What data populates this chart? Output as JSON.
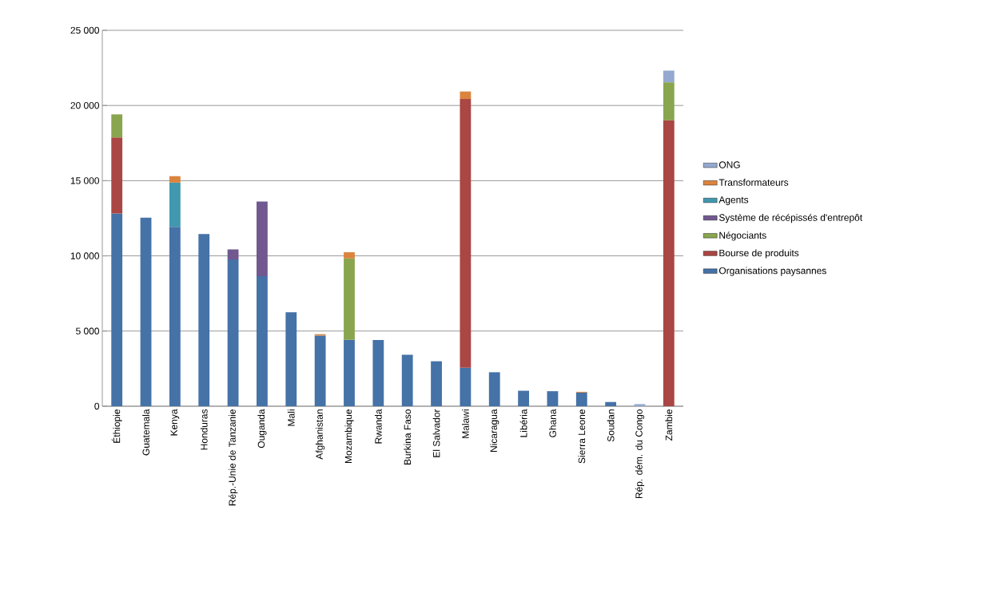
{
  "chart_data": {
    "type": "bar",
    "stacked": true,
    "categories": [
      "Éthiopie",
      "Guatemala",
      "Kenya",
      "Honduras",
      "Rép.-Unie de Tanzanie",
      "Ouganda",
      "Mali",
      "Afghanistan",
      "Mozambique",
      "Rwanda",
      "Burkina Faso",
      "El Salvador",
      "Malawi",
      "Nicaragua",
      "Libéria",
      "Ghana",
      "Sierra Leone",
      "Soudan",
      "Rép. dém. du Congo",
      "Zambie"
    ],
    "series": [
      {
        "name": "Organisations paysannes",
        "color": "#4572a7",
        "values": [
          12820,
          12540,
          11930,
          11450,
          9760,
          8650,
          6250,
          4700,
          4420,
          4400,
          3420,
          2990,
          2560,
          2260,
          1030,
          1000,
          910,
          280,
          null,
          null
        ]
      },
      {
        "name": "Bourse de produits",
        "color": "#aa4643",
        "values": [
          5060,
          null,
          null,
          null,
          null,
          null,
          null,
          null,
          null,
          null,
          null,
          null,
          17870,
          null,
          null,
          null,
          null,
          null,
          null,
          19010
        ]
      },
      {
        "name": "Négociants",
        "color": "#89a54e",
        "values": [
          1530,
          null,
          null,
          null,
          null,
          null,
          null,
          null,
          5410,
          null,
          null,
          null,
          null,
          null,
          null,
          null,
          null,
          null,
          null,
          2530
        ]
      },
      {
        "name": "Système de récépissés d'entrepôt",
        "color": "#71588f",
        "values": [
          null,
          null,
          null,
          null,
          670,
          4970,
          null,
          null,
          null,
          null,
          null,
          null,
          null,
          null,
          null,
          null,
          null,
          null,
          null,
          null
        ]
      },
      {
        "name": "Agents",
        "color": "#4198af",
        "values": [
          null,
          null,
          2940,
          null,
          null,
          null,
          null,
          null,
          null,
          null,
          null,
          null,
          null,
          null,
          null,
          null,
          null,
          null,
          null,
          null
        ]
      },
      {
        "name": "Transformateurs",
        "color": "#db843d",
        "values": [
          null,
          null,
          430,
          null,
          null,
          null,
          null,
          90,
          410,
          null,
          null,
          null,
          500,
          null,
          null,
          null,
          50,
          null,
          null,
          null
        ]
      },
      {
        "name": "ONG",
        "color": "#93a9cf",
        "values": [
          null,
          null,
          null,
          null,
          null,
          null,
          null,
          null,
          null,
          null,
          null,
          null,
          null,
          null,
          null,
          null,
          null,
          null,
          140,
          780
        ]
      }
    ],
    "ylim": [
      0,
      25000
    ],
    "yticks": [
      {
        "value": 0,
        "label": "0"
      },
      {
        "value": 5000,
        "label": "5 000"
      },
      {
        "value": 10000,
        "label": "10 000"
      },
      {
        "value": 15000,
        "label": "15 000"
      },
      {
        "value": 20000,
        "label": "20 000"
      },
      {
        "value": 25000,
        "label": "25 000"
      }
    ],
    "grid": "y",
    "legend": "right"
  }
}
